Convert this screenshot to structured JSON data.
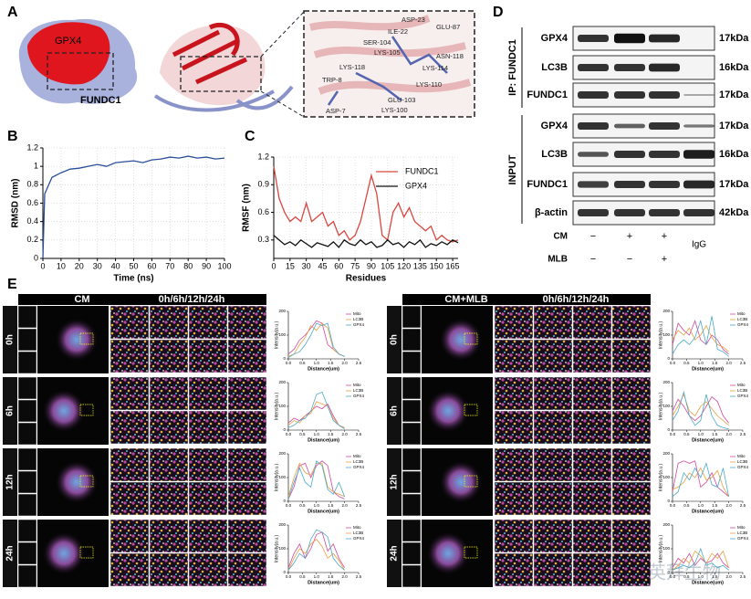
{
  "panel_a": {
    "label": "A",
    "protein_labels": [
      "GPX4",
      "FUNDC1"
    ],
    "residues": [
      "ASP-23",
      "ILE-22",
      "GLU-87",
      "SER-104",
      "LYS-105",
      "LYS-118",
      "ASN-118",
      "LYS-114",
      "LYS-110",
      "TRP-8",
      "GLU-103",
      "ASP-7",
      "LYS-100"
    ]
  },
  "panel_b": {
    "label": "B",
    "xlabel": "Time (ns)",
    "ylabel": "RMSD (nm)",
    "xlim": [
      0,
      100
    ],
    "ylim": [
      0,
      1.2
    ],
    "grid": true,
    "xticks": [
      0,
      10,
      20,
      30,
      40,
      50,
      60,
      70,
      80,
      90,
      100
    ],
    "yticks": [
      0,
      0.2,
      0.4,
      0.6,
      0.8,
      1,
      1.2
    ],
    "x": [
      0,
      1,
      5,
      10,
      15,
      20,
      25,
      30,
      35,
      40,
      45,
      50,
      55,
      60,
      65,
      70,
      75,
      80,
      85,
      90,
      95,
      100
    ],
    "series": [
      {
        "color": "#2a4f9a",
        "values": [
          0,
          0.7,
          0.88,
          0.93,
          0.97,
          0.98,
          1.0,
          1.02,
          1.0,
          1.04,
          1.05,
          1.06,
          1.04,
          1.07,
          1.08,
          1.1,
          1.09,
          1.11,
          1.09,
          1.1,
          1.08,
          1.09
        ]
      }
    ]
  },
  "panel_c": {
    "label": "C",
    "xlabel": "Residues",
    "ylabel": "RMSF (nm)",
    "xlim": [
      0,
      170
    ],
    "ylim": [
      0.1,
      1.2
    ],
    "grid": true,
    "xticks": [
      0,
      15,
      30,
      45,
      60,
      75,
      90,
      105,
      120,
      135,
      150,
      165
    ],
    "yticks": [
      0.3,
      0.6,
      0.9,
      1.2
    ],
    "x": [
      0,
      5,
      10,
      15,
      20,
      25,
      30,
      35,
      40,
      45,
      50,
      55,
      60,
      65,
      70,
      75,
      80,
      85,
      90,
      95,
      100,
      105,
      110,
      115,
      120,
      125,
      130,
      135,
      140,
      145,
      150,
      155,
      160,
      165,
      170
    ],
    "series": [
      {
        "name": "FUNDC1",
        "color": "#d9473f",
        "values": [
          1.1,
          0.75,
          0.6,
          0.5,
          0.55,
          0.5,
          0.7,
          0.5,
          0.55,
          0.6,
          0.45,
          0.5,
          0.35,
          0.4,
          0.3,
          0.35,
          0.5,
          0.75,
          1.0,
          0.8,
          0.35,
          0.3,
          0.6,
          0.7,
          0.55,
          0.65,
          0.5,
          0.45,
          0.4,
          0.45,
          0.3,
          0.35,
          0.3,
          0.28,
          0.3
        ]
      },
      {
        "name": "GPX4",
        "color": "#111111",
        "values": [
          0.35,
          0.3,
          0.25,
          0.28,
          0.24,
          0.3,
          0.26,
          0.22,
          0.27,
          0.25,
          0.23,
          0.28,
          0.22,
          0.3,
          0.26,
          0.24,
          0.3,
          0.25,
          0.28,
          0.22,
          0.24,
          0.3,
          0.25,
          0.27,
          0.22,
          0.28,
          0.25,
          0.3,
          0.22,
          0.26,
          0.24,
          0.28,
          0.25,
          0.3,
          0.27
        ]
      }
    ]
  },
  "panel_d": {
    "label": "D",
    "group_labels": [
      "IP: FUNDC1",
      "INPUT"
    ],
    "rows": [
      "GPX4",
      "LC3B",
      "FUNDC1",
      "GPX4",
      "LC3B",
      "FUNDC1",
      "β-actin"
    ],
    "sizes": [
      "17kDa",
      "16kDa",
      "17kDa",
      "17kDa",
      "16kDa",
      "17kDa",
      "42kDa"
    ],
    "conditions": [
      {
        "name": "CM",
        "marks": [
          "−",
          "+",
          "+"
        ]
      },
      {
        "name": "MLB",
        "marks": [
          "−",
          "−",
          "+"
        ]
      }
    ],
    "control": "IgG"
  },
  "panel_e": {
    "label": "E",
    "groups": [
      {
        "name": "CM",
        "times": "0h/6h/12h/24h"
      },
      {
        "name": "CM+MLB",
        "times": "0h/6h/12h/24h"
      }
    ],
    "row_labels": [
      "0h",
      "6h",
      "12h",
      "24h"
    ],
    "plot_xlabel": "Distance(um)",
    "plot_ylabel": "Intensity(a.u.)",
    "plot_xlim": [
      0,
      2.5
    ],
    "plot_ylim": [
      0,
      200
    ],
    "plot_xticks": [
      {
        "value": 0,
        "label": "0.0"
      },
      {
        "value": 0.5,
        "label": "0.5"
      },
      {
        "value": 1,
        "label": "1.0"
      },
      {
        "value": 1.5,
        "label": "1.5"
      },
      {
        "value": 2,
        "label": "2.0"
      },
      {
        "value": 2.5,
        "label": "2.5"
      }
    ],
    "plot_yticks": [
      0,
      100,
      200
    ],
    "plot_x": [
      0,
      0.2,
      0.4,
      0.6,
      0.8,
      1,
      1.2,
      1.4,
      1.6,
      1.8,
      2
    ],
    "channels": [
      {
        "name": "Mito",
        "color": "#d1489c"
      },
      {
        "name": "LC3B",
        "color": "#e8a040"
      },
      {
        "name": "GPX4",
        "color": "#4aa9c9"
      }
    ],
    "plots": [
      [
        [
          [
            20,
            40,
            80,
            100,
            130,
            160,
            150,
            60,
            40,
            20,
            10
          ],
          [
            10,
            20,
            60,
            90,
            140,
            120,
            150,
            130,
            40,
            20,
            10
          ],
          [
            5,
            20,
            30,
            60,
            100,
            150,
            140,
            150,
            50,
            20,
            10
          ]
        ],
        [
          [
            30,
            50,
            40,
            60,
            80,
            100,
            90,
            110,
            60,
            20,
            10
          ],
          [
            20,
            40,
            30,
            60,
            70,
            120,
            110,
            100,
            50,
            20,
            10
          ],
          [
            10,
            20,
            40,
            50,
            80,
            150,
            160,
            100,
            40,
            20,
            5
          ]
        ],
        [
          [
            10,
            60,
            150,
            160,
            100,
            150,
            170,
            150,
            40,
            20,
            10
          ],
          [
            20,
            100,
            160,
            120,
            110,
            160,
            160,
            60,
            40,
            30,
            20
          ],
          [
            10,
            80,
            140,
            80,
            60,
            170,
            150,
            50,
            30,
            80,
            20
          ]
        ],
        [
          [
            20,
            80,
            120,
            60,
            100,
            160,
            170,
            90,
            120,
            60,
            20
          ],
          [
            10,
            60,
            100,
            80,
            120,
            140,
            110,
            60,
            80,
            50,
            10
          ],
          [
            10,
            40,
            80,
            60,
            140,
            180,
            170,
            150,
            60,
            30,
            10
          ]
        ]
      ],
      [
        [
          [
            60,
            150,
            120,
            100,
            160,
            80,
            60,
            100,
            80,
            40,
            20
          ],
          [
            80,
            120,
            100,
            130,
            80,
            100,
            140,
            90,
            60,
            50,
            30
          ],
          [
            20,
            60,
            80,
            60,
            90,
            160,
            60,
            180,
            40,
            30,
            10
          ]
        ],
        [
          [
            80,
            130,
            100,
            60,
            40,
            60,
            100,
            140,
            120,
            60,
            30
          ],
          [
            60,
            100,
            150,
            80,
            60,
            100,
            120,
            90,
            60,
            40,
            20
          ],
          [
            40,
            80,
            160,
            60,
            20,
            40,
            150,
            60,
            20,
            10,
            5
          ]
        ],
        [
          [
            40,
            160,
            170,
            160,
            170,
            60,
            80,
            120,
            60,
            40,
            20
          ],
          [
            50,
            60,
            80,
            120,
            100,
            140,
            90,
            100,
            130,
            60,
            20
          ],
          [
            20,
            40,
            120,
            90,
            140,
            100,
            160,
            70,
            60,
            140,
            20
          ]
        ],
        [
          [
            20,
            60,
            40,
            80,
            30,
            60,
            40,
            50,
            80,
            40,
            20
          ],
          [
            10,
            30,
            60,
            40,
            90,
            70,
            40,
            80,
            60,
            90,
            20
          ],
          [
            10,
            20,
            30,
            20,
            40,
            100,
            30,
            40,
            20,
            30,
            10
          ]
        ]
      ]
    ]
  },
  "watermark": "英拜生物"
}
